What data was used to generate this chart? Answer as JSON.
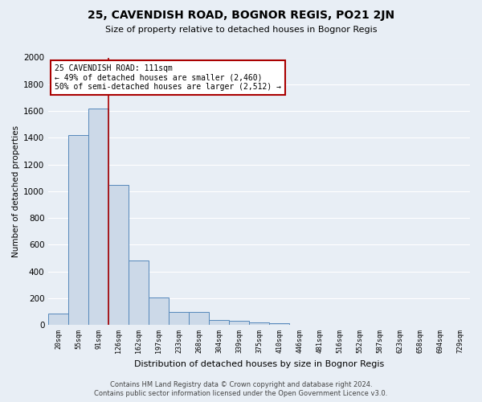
{
  "title": "25, CAVENDISH ROAD, BOGNOR REGIS, PO21 2JN",
  "subtitle": "Size of property relative to detached houses in Bognor Regis",
  "xlabel": "Distribution of detached houses by size in Bognor Regis",
  "ylabel": "Number of detached properties",
  "footer_line1": "Contains HM Land Registry data © Crown copyright and database right 2024.",
  "footer_line2": "Contains public sector information licensed under the Open Government Licence v3.0.",
  "bin_labels": [
    "20sqm",
    "55sqm",
    "91sqm",
    "126sqm",
    "162sqm",
    "197sqm",
    "233sqm",
    "268sqm",
    "304sqm",
    "339sqm",
    "375sqm",
    "410sqm",
    "446sqm",
    "481sqm",
    "516sqm",
    "552sqm",
    "587sqm",
    "623sqm",
    "658sqm",
    "694sqm",
    "729sqm"
  ],
  "bar_heights": [
    85,
    1420,
    1620,
    1050,
    480,
    205,
    100,
    100,
    40,
    30,
    20,
    15,
    0,
    0,
    0,
    0,
    0,
    0,
    0,
    0,
    0
  ],
  "bar_color": "#ccd9e8",
  "bar_edge_color": "#5588bb",
  "background_color": "#e8eef5",
  "grid_color": "#ffffff",
  "vline_x": 2.5,
  "vline_color": "#aa0000",
  "annotation_text": "25 CAVENDISH ROAD: 111sqm\n← 49% of detached houses are smaller (2,460)\n50% of semi-detached houses are larger (2,512) →",
  "annotation_box_color": "#ffffff",
  "annotation_box_edge": "#aa0000",
  "ylim": [
    0,
    2000
  ],
  "yticks": [
    0,
    200,
    400,
    600,
    800,
    1000,
    1200,
    1400,
    1600,
    1800,
    2000
  ]
}
